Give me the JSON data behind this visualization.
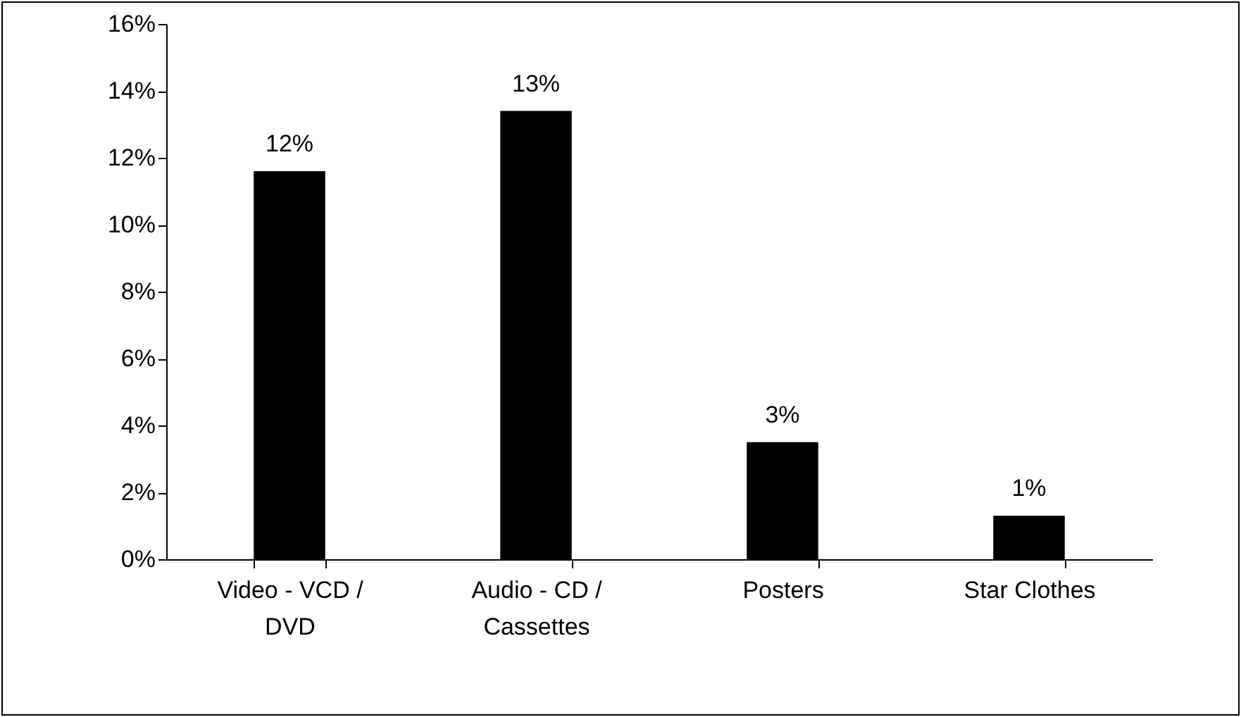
{
  "chart_data": {
    "type": "bar",
    "categories": [
      "Video - VCD / DVD",
      "Audio - CD / Cassettes",
      "Posters",
      "Star Clothes"
    ],
    "values": [
      11.6,
      13.4,
      3.5,
      1.3
    ],
    "value_labels": [
      "12%",
      "13%",
      "3%",
      "1%"
    ],
    "color": "#000000",
    "ylim": [
      0,
      16
    ],
    "yticks": [
      {
        "value": 0,
        "label": "0%"
      },
      {
        "value": 2,
        "label": "2%"
      },
      {
        "value": 4,
        "label": "4%"
      },
      {
        "value": 6,
        "label": "6%"
      },
      {
        "value": 8,
        "label": "8%"
      },
      {
        "value": 10,
        "label": "10%"
      },
      {
        "value": 12,
        "label": "12%"
      },
      {
        "value": 14,
        "label": "14%"
      },
      {
        "value": 16,
        "label": "16%"
      }
    ],
    "grid": false
  }
}
